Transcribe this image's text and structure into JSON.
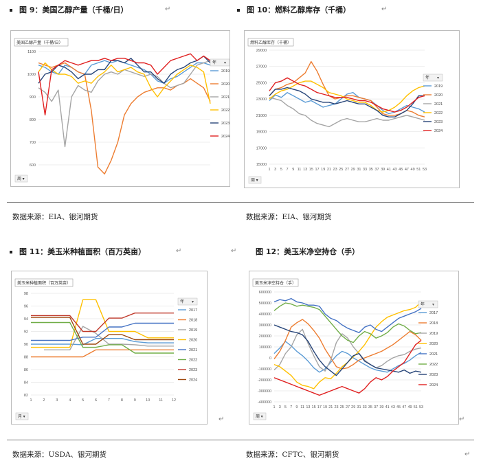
{
  "panels": [
    {
      "title": "图 9：美国乙醇产量（千桶/日）",
      "source": "数据来源：EIA、银河期货"
    },
    {
      "title": "图 10：燃料乙醇库存（千桶）",
      "source": "数据来源：EIA、银河期货"
    },
    {
      "title": "图 11：美玉米种植面积（百万英亩）",
      "source": "数据来源：USDA、银河期货"
    },
    {
      "title": "图 12：美玉米净空持仓（手）",
      "source": "数据来源：CFTC、银河期货"
    }
  ],
  "chart_data": [
    {
      "type": "line",
      "title": "美国乙醇产量（千桶/日）",
      "ylim": [
        500,
        1100
      ],
      "yticks": [
        500,
        600,
        700,
        800,
        900,
        1000,
        1100
      ],
      "x": [
        1,
        3,
        5,
        7,
        9,
        11,
        13,
        15,
        17,
        19,
        21,
        23,
        25,
        27,
        29,
        31,
        33,
        35,
        37,
        39,
        41,
        43,
        45,
        47,
        49,
        51,
        53
      ],
      "legend_title": "年",
      "filter_label": "周",
      "legend_position": "right",
      "series": [
        {
          "name": "2019",
          "color": "#5b9bd5",
          "values": [
            1040,
            1030,
            1010,
            1000,
            1040,
            1030,
            1010,
            1000,
            1040,
            1050,
            1060,
            1050,
            1060,
            1050,
            1040,
            1030,
            1020,
            1000,
            970,
            960,
            980,
            990,
            1010,
            1030,
            1050,
            1050,
            1040
          ]
        },
        {
          "name": "2020",
          "color": "#ed7d31",
          "values": [
            1050,
            1040,
            1030,
            1040,
            1050,
            1030,
            1010,
            1000,
            840,
            590,
            560,
            620,
            700,
            820,
            870,
            900,
            920,
            930,
            940,
            940,
            930,
            950,
            960,
            980,
            960,
            940,
            880
          ]
        },
        {
          "name": "2021",
          "color": "#a5a5a5",
          "values": [
            940,
            920,
            880,
            930,
            680,
            900,
            950,
            930,
            920,
            970,
            1000,
            1010,
            1000,
            1020,
            1010,
            1000,
            990,
            1000,
            990,
            960,
            940,
            950,
            960,
            1000,
            1040,
            1050,
            1060
          ]
        },
        {
          "name": "2022",
          "color": "#ffc000",
          "values": [
            1010,
            1050,
            1020,
            1000,
            1000,
            990,
            960,
            970,
            960,
            990,
            1010,
            1040,
            1010,
            1020,
            1030,
            1010,
            1000,
            940,
            900,
            940,
            970,
            1000,
            1020,
            1040,
            1030,
            1010,
            870
          ]
        },
        {
          "name": "2023",
          "color": "#264478",
          "values": [
            960,
            1000,
            1010,
            1040,
            1030,
            1010,
            980,
            1000,
            1000,
            1020,
            1020,
            1060,
            1060,
            1050,
            1070,
            1040,
            1010,
            1010,
            980,
            960,
            1000,
            1020,
            1030,
            1050,
            1060,
            1080,
            1050
          ]
        },
        {
          "name": "2024",
          "color": "#e02020",
          "values": [
            1010,
            820,
            1020,
            1040,
            1060,
            1050,
            1040,
            1050,
            1060,
            1060,
            1070,
            1060,
            1070,
            1070,
            1060,
            1050,
            1050,
            1040,
            1000,
            1030,
            1060,
            1070,
            1080,
            1090,
            1060,
            1080,
            1060
          ]
        }
      ]
    },
    {
      "type": "line",
      "title": "燃料乙醇库存（千桶）",
      "ylim": [
        15000,
        29000
      ],
      "yticks": [
        15000,
        17000,
        19000,
        21000,
        23000,
        25000,
        27000,
        29000
      ],
      "x": [
        1,
        3,
        5,
        7,
        9,
        11,
        13,
        15,
        17,
        19,
        21,
        23,
        25,
        27,
        29,
        31,
        33,
        35,
        37,
        39,
        41,
        43,
        45,
        47,
        49,
        51,
        53
      ],
      "legend_title": "年",
      "filter_label": "周",
      "legend_position": "right",
      "series": [
        {
          "name": "2019",
          "color": "#5b9bd5",
          "values": [
            22800,
            23500,
            23200,
            23800,
            23400,
            23000,
            22600,
            22800,
            22400,
            22000,
            22200,
            22400,
            23000,
            23600,
            23800,
            23200,
            23000,
            22800,
            22200,
            21600,
            21200,
            21400,
            21800,
            22200,
            22000,
            21800,
            21400
          ]
        },
        {
          "name": "2020",
          "color": "#ed7d31",
          "values": [
            23400,
            24200,
            24400,
            24800,
            25000,
            25600,
            26200,
            27600,
            26400,
            24800,
            23400,
            23000,
            23200,
            23400,
            23400,
            23200,
            23000,
            22800,
            22000,
            21200,
            21000,
            21000,
            21200,
            21600,
            21400,
            21000,
            20800
          ]
        },
        {
          "name": "2021",
          "color": "#a5a5a5",
          "values": [
            23200,
            23000,
            22800,
            22200,
            21800,
            21200,
            21000,
            20400,
            20000,
            19800,
            19600,
            20000,
            20400,
            20600,
            20400,
            20200,
            20200,
            20400,
            20600,
            20400,
            20400,
            20600,
            20800,
            21000,
            20800,
            20600,
            20400
          ]
        },
        {
          "name": "2022",
          "color": "#ffc000",
          "values": [
            23000,
            23600,
            24000,
            24200,
            24600,
            25000,
            25200,
            25200,
            24800,
            24400,
            23800,
            23600,
            23400,
            23000,
            22800,
            22600,
            22600,
            22200,
            21600,
            21400,
            21600,
            22000,
            22600,
            23400,
            24000,
            24400,
            24600
          ]
        },
        {
          "name": "2023",
          "color": "#264478",
          "values": [
            23400,
            24200,
            24200,
            24400,
            24200,
            24000,
            23600,
            23000,
            22800,
            22600,
            22600,
            22400,
            22600,
            22800,
            22600,
            22400,
            22400,
            22000,
            21600,
            21000,
            20800,
            20800,
            21200,
            21600,
            22400,
            23400,
            23400
          ]
        },
        {
          "name": "2024",
          "color": "#e02020",
          "values": [
            24000,
            25000,
            25200,
            25600,
            25200,
            24800,
            24600,
            24200,
            23800,
            23600,
            23400,
            23200,
            23200,
            23200,
            23000,
            22800,
            22800,
            22600,
            22200,
            21800,
            21600,
            21400,
            21600,
            22000,
            22600,
            23200,
            23400
          ]
        }
      ]
    },
    {
      "type": "line",
      "title": "美玉米种植面积（百万英亩）",
      "ylim": [
        82,
        98
      ],
      "yticks": [
        82,
        84,
        86,
        88,
        90,
        92,
        94,
        96,
        98
      ],
      "x": [
        1,
        2,
        3,
        4,
        5,
        6,
        7,
        8,
        9,
        10,
        11,
        12
      ],
      "legend_title": "年",
      "filter_label": "月",
      "legend_position": "right",
      "series": [
        {
          "name": "2017",
          "color": "#5b9bd5",
          "values": [
            90.0,
            90.0,
            90.0,
            90.0,
            89.9,
            90.9,
            90.9,
            90.9,
            90.4,
            90.2,
            90.2,
            90.2
          ]
        },
        {
          "name": "2018",
          "color": "#ed7d31",
          "values": [
            88.0,
            88.0,
            88.0,
            88.0,
            88.0,
            89.1,
            89.1,
            89.1,
            89.1,
            89.1,
            89.1,
            89.1
          ]
        },
        {
          "name": "2019",
          "color": "#a5a5a5",
          "values": [
            null,
            89.1,
            89.1,
            89.1,
            92.8,
            91.7,
            90.0,
            90.0,
            89.9,
            89.7,
            89.7,
            89.7
          ]
        },
        {
          "name": "2020",
          "color": "#ffc000",
          "values": [
            89.5,
            89.5,
            89.5,
            89.5,
            97.0,
            97.0,
            92.0,
            92.0,
            92.0,
            91.0,
            91.0,
            91.0
          ]
        },
        {
          "name": "2021",
          "color": "#4472c4",
          "values": [
            90.6,
            90.6,
            90.6,
            90.6,
            91.1,
            91.1,
            92.7,
            92.7,
            93.3,
            93.3,
            93.3,
            93.3
          ]
        },
        {
          "name": "2022",
          "color": "#70ad47",
          "values": [
            93.4,
            93.4,
            93.4,
            93.4,
            89.5,
            89.5,
            89.9,
            89.9,
            88.6,
            88.6,
            88.6,
            88.6
          ]
        },
        {
          "name": "2023",
          "color": "#c0392b",
          "values": [
            94.5,
            94.5,
            94.5,
            94.5,
            92.0,
            92.0,
            94.1,
            94.1,
            94.9,
            94.9,
            94.9,
            94.9
          ]
        },
        {
          "name": "2024",
          "color": "#9e480e",
          "values": [
            94.2,
            94.2,
            94.2,
            94.2,
            90.0,
            90.0,
            91.5,
            91.5,
            90.7,
            90.7,
            90.7,
            90.7
          ]
        }
      ]
    },
    {
      "type": "line",
      "title": "美玉米净空持仓（手）",
      "ylim": [
        -400000,
        600000
      ],
      "yticks": [
        -400000,
        -300000,
        -200000,
        -100000,
        0,
        100000,
        200000,
        300000,
        400000,
        500000,
        600000
      ],
      "x": [
        1,
        3,
        5,
        7,
        9,
        11,
        13,
        15,
        17,
        19,
        21,
        23,
        25,
        27,
        29,
        31,
        33,
        35,
        37,
        39,
        41,
        43,
        45,
        47,
        49,
        51,
        53
      ],
      "legend_title": "年",
      "filter_label": "周",
      "legend_position": "right",
      "series": [
        {
          "name": "2017",
          "color": "#5b9bd5",
          "values": [
            40000,
            90000,
            150000,
            110000,
            60000,
            20000,
            -30000,
            -90000,
            -130000,
            -100000,
            -40000,
            20000,
            60000,
            40000,
            0,
            -30000,
            -60000,
            -90000,
            -110000,
            -120000,
            -130000,
            -100000,
            -70000,
            -50000,
            -20000,
            20000,
            50000
          ]
        },
        {
          "name": "2018",
          "color": "#ed7d31",
          "values": [
            -10000,
            60000,
            160000,
            280000,
            320000,
            350000,
            310000,
            250000,
            180000,
            80000,
            0,
            -80000,
            -100000,
            -90000,
            -60000,
            -20000,
            0,
            20000,
            40000,
            60000,
            90000,
            120000,
            160000,
            200000,
            240000,
            210000,
            160000
          ]
        },
        {
          "name": "2019",
          "color": "#a5a5a5",
          "values": [
            -110000,
            -60000,
            40000,
            100000,
            210000,
            260000,
            130000,
            20000,
            -80000,
            -120000,
            -20000,
            140000,
            220000,
            180000,
            100000,
            40000,
            -20000,
            -60000,
            -90000,
            -70000,
            -30000,
            0,
            20000,
            30000,
            60000,
            80000,
            90000
          ]
        },
        {
          "name": "2020",
          "color": "#ffc000",
          "values": [
            -60000,
            -80000,
            -120000,
            -160000,
            -220000,
            -250000,
            -260000,
            -280000,
            -220000,
            -180000,
            -190000,
            -140000,
            -80000,
            -40000,
            10000,
            60000,
            120000,
            200000,
            280000,
            330000,
            370000,
            390000,
            410000,
            430000,
            440000,
            460000,
            510000
          ]
        },
        {
          "name": "2021",
          "color": "#4472c4",
          "values": [
            510000,
            530000,
            520000,
            540000,
            510000,
            500000,
            480000,
            480000,
            470000,
            400000,
            360000,
            340000,
            300000,
            270000,
            250000,
            230000,
            280000,
            300000,
            260000,
            240000,
            280000,
            320000,
            360000,
            380000,
            400000,
            420000,
            450000
          ]
        },
        {
          "name": "2022",
          "color": "#70ad47",
          "values": [
            430000,
            470000,
            500000,
            490000,
            470000,
            480000,
            470000,
            460000,
            440000,
            380000,
            320000,
            260000,
            200000,
            160000,
            140000,
            200000,
            240000,
            220000,
            180000,
            200000,
            230000,
            280000,
            310000,
            290000,
            250000,
            220000,
            230000
          ]
        },
        {
          "name": "2023",
          "color": "#264478",
          "values": [
            300000,
            280000,
            260000,
            240000,
            230000,
            210000,
            150000,
            60000,
            -20000,
            -80000,
            -120000,
            -160000,
            -100000,
            -40000,
            20000,
            40000,
            -30000,
            -60000,
            -90000,
            -100000,
            -110000,
            -120000,
            -130000,
            -110000,
            -140000,
            -120000,
            -130000
          ]
        },
        {
          "name": "2024",
          "color": "#e02020",
          "values": [
            -180000,
            -200000,
            -220000,
            -240000,
            -260000,
            -280000,
            -300000,
            -320000,
            -340000,
            -320000,
            -300000,
            -280000,
            -260000,
            -280000,
            -300000,
            -320000,
            -280000,
            -220000,
            -180000,
            -200000,
            -170000,
            -120000,
            -80000,
            -40000,
            40000,
            120000,
            160000
          ]
        }
      ]
    }
  ]
}
